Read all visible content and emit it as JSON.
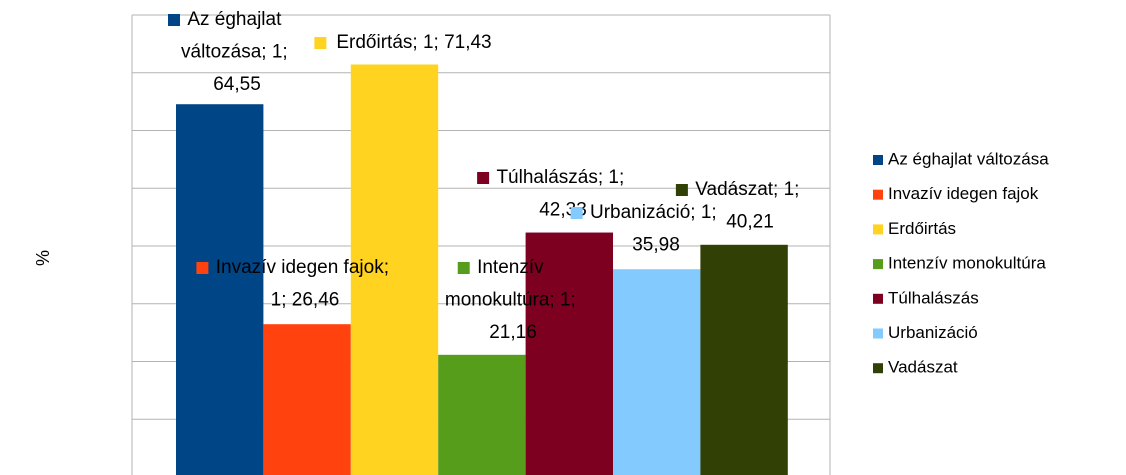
{
  "chart_data": {
    "type": "bar",
    "y_label": "%",
    "categories": [
      "1"
    ],
    "ylim": [
      0,
      80
    ],
    "yticks": [
      0,
      10,
      20,
      30,
      40,
      50,
      60,
      70,
      80
    ],
    "grid": true,
    "legend": "right",
    "series": [
      {
        "name": "Az éghajlat változása",
        "color": "#004586",
        "values": [
          64.55
        ],
        "value_labels": [
          "Az éghajlat változása; 1; 64,55"
        ]
      },
      {
        "name": "Invazív idegen fajok",
        "color": "#ff420e",
        "values": [
          26.46
        ],
        "value_labels": [
          "Invazív idegen fajok; 1; 26,46"
        ]
      },
      {
        "name": "Erdőirtás",
        "color": "#ffd320",
        "values": [
          71.43
        ],
        "value_labels": [
          "Erdőirtás; 1; 71,43"
        ]
      },
      {
        "name": "Intenzív monokultúra",
        "color": "#579d1c",
        "values": [
          21.16
        ],
        "value_labels": [
          "Intenzív monokultúra; 1; 21,16"
        ]
      },
      {
        "name": "Túlhalászás",
        "color": "#7e0021",
        "values": [
          42.33
        ],
        "value_labels": [
          "Túlhalászás; 1; 42,33"
        ]
      },
      {
        "name": "Urbanizáció",
        "color": "#83caff",
        "values": [
          35.98
        ],
        "value_labels": [
          "Urbanizáció; 1; 35,98"
        ]
      },
      {
        "name": "Vadászat",
        "color": "#314004",
        "values": [
          40.21
        ],
        "value_labels": [
          "Vadászat; 1; 40,21"
        ]
      }
    ]
  }
}
